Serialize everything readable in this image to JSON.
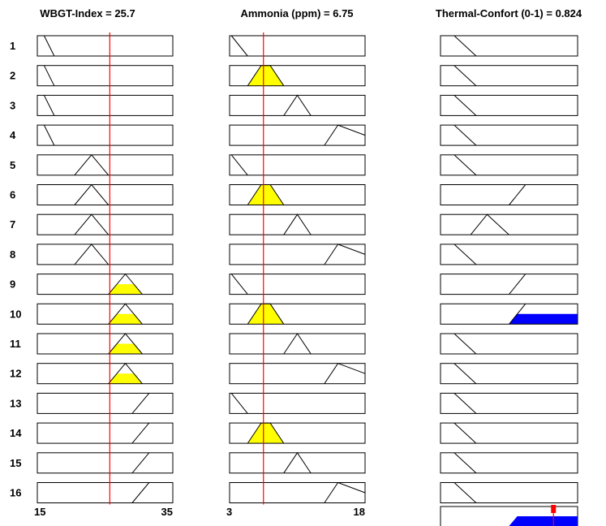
{
  "columns": [
    {
      "title": "WBGT-Index = 25.7",
      "value": 25.7,
      "min_label": "15",
      "max_label": "35",
      "range": [
        15,
        35
      ],
      "membership_functions": [
        {
          "rule": 1,
          "shape": "line",
          "points": [
            [
              16,
              1
            ],
            [
              17.5,
              0
            ]
          ]
        },
        {
          "rule": 2,
          "shape": "line",
          "points": [
            [
              16,
              1
            ],
            [
              17.5,
              0
            ]
          ]
        },
        {
          "rule": 3,
          "shape": "line",
          "points": [
            [
              16,
              1
            ],
            [
              17.5,
              0
            ]
          ]
        },
        {
          "rule": 4,
          "shape": "line",
          "points": [
            [
              16,
              1
            ],
            [
              17.5,
              0
            ]
          ]
        },
        {
          "rule": 5,
          "shape": "triangle",
          "points": [
            [
              20.5,
              0
            ],
            [
              23,
              1
            ],
            [
              25.5,
              0
            ]
          ]
        },
        {
          "rule": 6,
          "shape": "triangle",
          "points": [
            [
              20.5,
              0
            ],
            [
              23,
              1
            ],
            [
              25.5,
              0
            ]
          ]
        },
        {
          "rule": 7,
          "shape": "triangle",
          "points": [
            [
              20.5,
              0
            ],
            [
              23,
              1
            ],
            [
              25.5,
              0
            ]
          ]
        },
        {
          "rule": 8,
          "shape": "triangle",
          "points": [
            [
              20.5,
              0
            ],
            [
              23,
              1
            ],
            [
              25.5,
              0
            ]
          ]
        },
        {
          "rule": 9,
          "shape": "triangle",
          "points": [
            [
              25.5,
              0
            ],
            [
              28,
              1
            ],
            [
              30.5,
              0
            ]
          ],
          "fill_level": 0.5
        },
        {
          "rule": 10,
          "shape": "triangle",
          "points": [
            [
              25.5,
              0
            ],
            [
              28,
              1
            ],
            [
              30.5,
              0
            ]
          ],
          "fill_level": 0.5
        },
        {
          "rule": 11,
          "shape": "triangle",
          "points": [
            [
              25.5,
              0
            ],
            [
              28,
              1
            ],
            [
              30.5,
              0
            ]
          ],
          "fill_level": 0.5
        },
        {
          "rule": 12,
          "shape": "triangle",
          "points": [
            [
              25.5,
              0
            ],
            [
              28,
              1
            ],
            [
              30.5,
              0
            ]
          ],
          "fill_level": 0.5
        },
        {
          "rule": 13,
          "shape": "line",
          "points": [
            [
              29,
              0
            ],
            [
              31.5,
              1
            ]
          ]
        },
        {
          "rule": 14,
          "shape": "line",
          "points": [
            [
              29,
              0
            ],
            [
              31.5,
              1
            ]
          ]
        },
        {
          "rule": 15,
          "shape": "line",
          "points": [
            [
              29,
              0
            ],
            [
              31.5,
              1
            ]
          ]
        },
        {
          "rule": 16,
          "shape": "line",
          "points": [
            [
              29,
              0
            ],
            [
              31.5,
              1
            ]
          ]
        }
      ]
    },
    {
      "title": "Ammonia (ppm) = 6.75",
      "value": 6.75,
      "min_label": "3",
      "max_label": "18",
      "range": [
        3,
        18
      ],
      "membership_functions": [
        {
          "rule": 1,
          "shape": "line",
          "points": [
            [
              3.2,
              1
            ],
            [
              5,
              0
            ]
          ]
        },
        {
          "rule": 2,
          "shape": "trapezoid",
          "points": [
            [
              5,
              0
            ],
            [
              6.5,
              1
            ],
            [
              7.5,
              1
            ],
            [
              9,
              0
            ]
          ],
          "fill_level": 1
        },
        {
          "rule": 3,
          "shape": "triangle",
          "points": [
            [
              9,
              0
            ],
            [
              10.5,
              1
            ],
            [
              12,
              0
            ]
          ]
        },
        {
          "rule": 4,
          "shape": "triangle",
          "points": [
            [
              13.5,
              0
            ],
            [
              15,
              1
            ],
            [
              18,
              0.5
            ]
          ]
        },
        {
          "rule": 5,
          "shape": "line",
          "points": [
            [
              3.2,
              1
            ],
            [
              5,
              0
            ]
          ]
        },
        {
          "rule": 6,
          "shape": "trapezoid",
          "points": [
            [
              5,
              0
            ],
            [
              6.5,
              1
            ],
            [
              7.5,
              1
            ],
            [
              9,
              0
            ]
          ],
          "fill_level": 1
        },
        {
          "rule": 7,
          "shape": "triangle",
          "points": [
            [
              9,
              0
            ],
            [
              10.5,
              1
            ],
            [
              12,
              0
            ]
          ]
        },
        {
          "rule": 8,
          "shape": "triangle",
          "points": [
            [
              13.5,
              0
            ],
            [
              15,
              1
            ],
            [
              18,
              0.5
            ]
          ]
        },
        {
          "rule": 9,
          "shape": "line",
          "points": [
            [
              3.2,
              1
            ],
            [
              5,
              0
            ]
          ]
        },
        {
          "rule": 10,
          "shape": "trapezoid",
          "points": [
            [
              5,
              0
            ],
            [
              6.5,
              1
            ],
            [
              7.5,
              1
            ],
            [
              9,
              0
            ]
          ],
          "fill_level": 1
        },
        {
          "rule": 11,
          "shape": "triangle",
          "points": [
            [
              9,
              0
            ],
            [
              10.5,
              1
            ],
            [
              12,
              0
            ]
          ]
        },
        {
          "rule": 12,
          "shape": "triangle",
          "points": [
            [
              13.5,
              0
            ],
            [
              15,
              1
            ],
            [
              18,
              0.5
            ]
          ]
        },
        {
          "rule": 13,
          "shape": "line",
          "points": [
            [
              3.2,
              1
            ],
            [
              5,
              0
            ]
          ]
        },
        {
          "rule": 14,
          "shape": "trapezoid",
          "points": [
            [
              5,
              0
            ],
            [
              6.5,
              1
            ],
            [
              7.5,
              1
            ],
            [
              9,
              0
            ]
          ],
          "fill_level": 1
        },
        {
          "rule": 15,
          "shape": "triangle",
          "points": [
            [
              9,
              0
            ],
            [
              10.5,
              1
            ],
            [
              12,
              0
            ]
          ]
        },
        {
          "rule": 16,
          "shape": "triangle",
          "points": [
            [
              13.5,
              0
            ],
            [
              15,
              1
            ],
            [
              18,
              0.5
            ]
          ]
        }
      ]
    },
    {
      "title": "Thermal-Confort (0-1) = 0.824",
      "value": 0.824,
      "range": [
        0,
        1
      ],
      "membership_functions": [
        {
          "rule": 1,
          "shape": "line",
          "points": [
            [
              0.1,
              1
            ],
            [
              0.26,
              0
            ]
          ]
        },
        {
          "rule": 2,
          "shape": "line",
          "points": [
            [
              0.1,
              1
            ],
            [
              0.26,
              0
            ]
          ]
        },
        {
          "rule": 3,
          "shape": "line",
          "points": [
            [
              0.1,
              1
            ],
            [
              0.26,
              0
            ]
          ]
        },
        {
          "rule": 4,
          "shape": "line",
          "points": [
            [
              0.1,
              1
            ],
            [
              0.26,
              0
            ]
          ]
        },
        {
          "rule": 5,
          "shape": "line",
          "points": [
            [
              0.1,
              1
            ],
            [
              0.26,
              0
            ]
          ]
        },
        {
          "rule": 6,
          "shape": "line",
          "points": [
            [
              0.5,
              0
            ],
            [
              0.62,
              1
            ]
          ]
        },
        {
          "rule": 7,
          "shape": "triangle",
          "points": [
            [
              0.22,
              0
            ],
            [
              0.34,
              1
            ],
            [
              0.5,
              0
            ]
          ]
        },
        {
          "rule": 8,
          "shape": "line",
          "points": [
            [
              0.1,
              1
            ],
            [
              0.26,
              0
            ]
          ]
        },
        {
          "rule": 9,
          "shape": "line",
          "points": [
            [
              0.5,
              0
            ],
            [
              0.62,
              1
            ]
          ]
        },
        {
          "rule": 10,
          "shape": "line",
          "points": [
            [
              0.5,
              0
            ],
            [
              0.62,
              1
            ]
          ],
          "fill_level": 0.5
        },
        {
          "rule": 11,
          "shape": "line",
          "points": [
            [
              0.1,
              1
            ],
            [
              0.26,
              0
            ]
          ]
        },
        {
          "rule": 12,
          "shape": "line",
          "points": [
            [
              0.1,
              1
            ],
            [
              0.26,
              0
            ]
          ]
        },
        {
          "rule": 13,
          "shape": "line",
          "points": [
            [
              0.1,
              1
            ],
            [
              0.26,
              0
            ]
          ]
        },
        {
          "rule": 14,
          "shape": "line",
          "points": [
            [
              0.1,
              1
            ],
            [
              0.26,
              0
            ]
          ]
        },
        {
          "rule": 15,
          "shape": "line",
          "points": [
            [
              0.1,
              1
            ],
            [
              0.26,
              0
            ]
          ]
        },
        {
          "rule": 16,
          "shape": "line",
          "points": [
            [
              0.1,
              1
            ],
            [
              0.26,
              0
            ]
          ]
        }
      ],
      "aggregate_fill_level": 0.5
    }
  ],
  "row_labels": [
    "1",
    "2",
    "3",
    "4",
    "5",
    "6",
    "7",
    "8",
    "9",
    "10",
    "11",
    "12",
    "13",
    "14",
    "15",
    "16"
  ],
  "colors": {
    "input_fill": "#ffff00",
    "output_fill": "#0000ff",
    "value_line": "#ff0000",
    "stroke": "#000000"
  }
}
